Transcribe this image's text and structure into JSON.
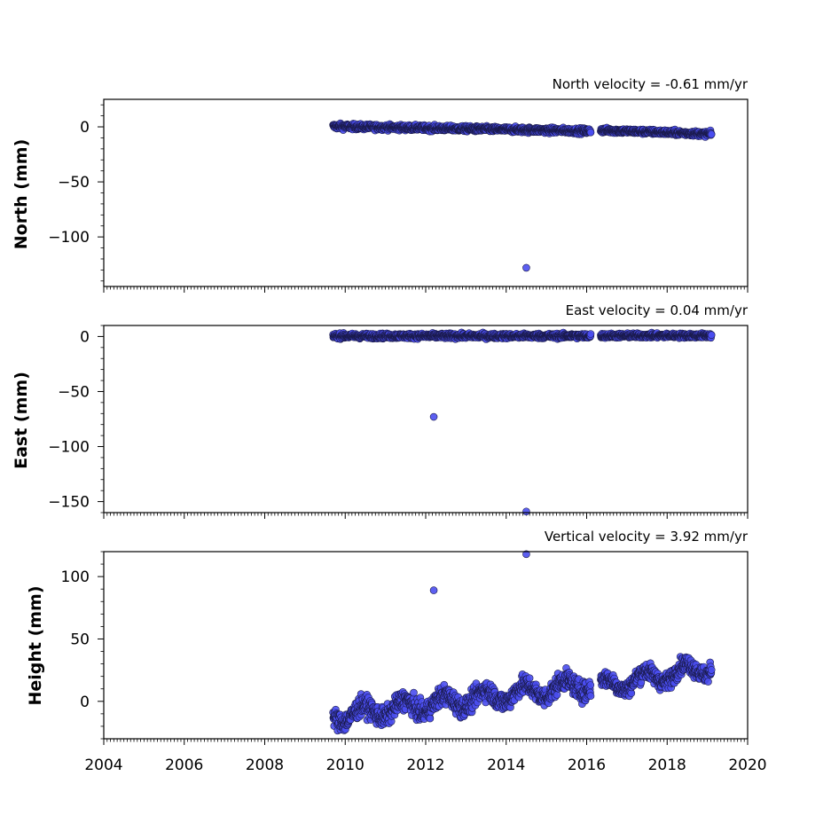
{
  "colors": {
    "marker_fill": "#4a4ef0",
    "marker_edge": "#1a1a4a"
  },
  "chart_data": [
    {
      "type": "scatter",
      "velocity_label": "North velocity = -0.61 mm/yr",
      "ylabel": "North (mm)",
      "xlim": [
        2004,
        2020
      ],
      "ylim": [
        -145,
        25
      ],
      "yticks": [
        0,
        -50,
        -100
      ],
      "xticks": [
        2004,
        2006,
        2008,
        2010,
        2012,
        2014,
        2016,
        2018,
        2020
      ],
      "show_x_tick_labels": false,
      "series": [
        {
          "segments": [
            {
              "x_start": 2009.7,
              "x_end": 2016.1,
              "y_start": 0.5,
              "y_end": -3.8,
              "noise": 2.4
            },
            {
              "x_start": 2016.35,
              "x_end": 2019.1,
              "y_start": -3.0,
              "y_end": -6.5,
              "noise": 2.2
            }
          ],
          "outliers": [
            {
              "x": 2014.5,
              "y": -128
            }
          ]
        }
      ]
    },
    {
      "type": "scatter",
      "velocity_label": "East velocity = 0.04 mm/yr",
      "ylabel": "East (mm)",
      "xlim": [
        2004,
        2020
      ],
      "ylim": [
        -160,
        10
      ],
      "yticks": [
        0,
        -50,
        -100,
        -150
      ],
      "xticks": [
        2004,
        2006,
        2008,
        2010,
        2012,
        2014,
        2016,
        2018,
        2020
      ],
      "show_x_tick_labels": false,
      "series": [
        {
          "segments": [
            {
              "x_start": 2009.7,
              "x_end": 2016.1,
              "y_start": 0.5,
              "y_end": 0.5,
              "noise": 2.2
            },
            {
              "x_start": 2016.35,
              "x_end": 2019.1,
              "y_start": 0.8,
              "y_end": 0.8,
              "noise": 2.0
            }
          ],
          "outliers": [
            {
              "x": 2012.2,
              "y": -73
            },
            {
              "x": 2014.5,
              "y": -159
            }
          ]
        }
      ]
    },
    {
      "type": "scatter",
      "velocity_label": "Vertical velocity = 3.92 mm/yr",
      "ylabel": "Height (mm)",
      "xlim": [
        2004,
        2020
      ],
      "ylim": [
        -30,
        120
      ],
      "yticks": [
        100,
        50,
        0
      ],
      "xticks": [
        2004,
        2006,
        2008,
        2010,
        2012,
        2014,
        2016,
        2018,
        2020
      ],
      "show_x_tick_labels": true,
      "series": [
        {
          "segments": [
            {
              "x_start": 2009.7,
              "x_end": 2016.1,
              "y_start": -12,
              "y_end": 14,
              "noise": 7.5,
              "seasonal_amplitude": 6
            },
            {
              "x_start": 2016.35,
              "x_end": 2019.1,
              "y_start": 12,
              "y_end": 28,
              "noise": 6.5,
              "seasonal_amplitude": 6
            }
          ],
          "outliers": [
            {
              "x": 2012.2,
              "y": 89
            },
            {
              "x": 2014.5,
              "y": 118
            }
          ]
        }
      ]
    }
  ]
}
